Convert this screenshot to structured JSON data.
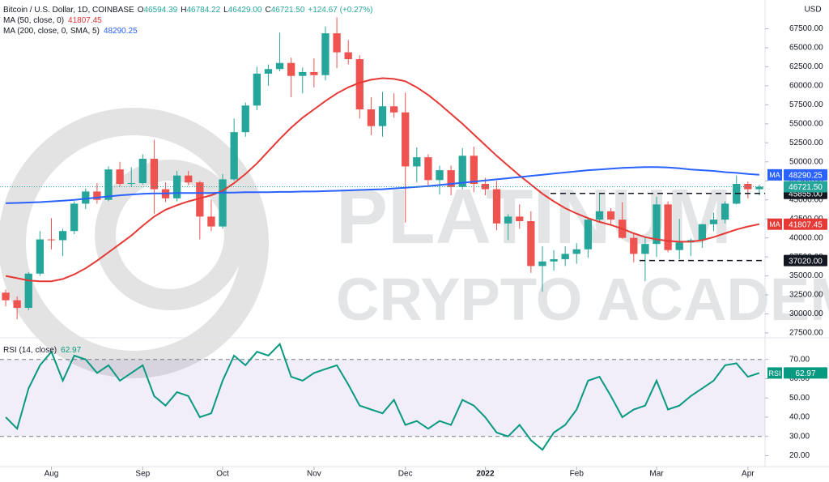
{
  "chart_data": [
    {
      "type": "candlestick",
      "title": "Bitcoin / U.S. Dollar, 1D, COINBASE",
      "ohlc": [
        "O",
        "46594.39",
        "H",
        "46784.22",
        "L",
        "46429.00",
        "C",
        "46721.50",
        "+124.67 (+0.27%)"
      ],
      "currency": "USD",
      "watermark": [
        "PLATINUM",
        "CRYPTO ACADEMY"
      ],
      "categories": [
        null,
        null,
        null,
        null,
        "Aug",
        null,
        null,
        null,
        null,
        null,
        null,
        null,
        "Sep",
        null,
        null,
        null,
        null,
        null,
        null,
        "Oct",
        null,
        null,
        null,
        null,
        null,
        null,
        null,
        "Nov",
        null,
        null,
        null,
        null,
        null,
        null,
        null,
        "Dec",
        null,
        null,
        null,
        null,
        null,
        null,
        "2022",
        null,
        null,
        null,
        null,
        null,
        null,
        null,
        "Feb",
        null,
        null,
        null,
        null,
        null,
        null,
        "Mar",
        null,
        null,
        null,
        null,
        null,
        null,
        null,
        "Apr",
        null
      ],
      "open": [
        32800,
        31800,
        30800,
        35300,
        39800,
        39700,
        40900,
        44500,
        46100,
        45000,
        49000,
        47100,
        47200,
        50400,
        46400,
        45200,
        48200,
        47300,
        42800,
        41500,
        47700,
        53900,
        57400,
        61600,
        62200,
        63000,
        61300,
        61800,
        61400,
        66900,
        64400,
        63500,
        56900,
        54700,
        57300,
        56500,
        49400,
        50600,
        47600,
        48900,
        46700,
        50800,
        47100,
        46400,
        41900,
        42800,
        42200,
        36300,
        36900,
        37200,
        37900,
        38500,
        42400,
        43500,
        42400,
        40000,
        37900,
        39200,
        44400,
        38400,
        39400,
        39700,
        41800,
        42400,
        44500,
        47100,
        46400
      ],
      "high": [
        33200,
        32300,
        35500,
        40900,
        42600,
        41200,
        44800,
        46500,
        47200,
        49400,
        50000,
        49300,
        51000,
        52900,
        47300,
        48800,
        48800,
        47500,
        45000,
        48400,
        55700,
        57800,
        62500,
        62800,
        67000,
        63700,
        62400,
        63600,
        67800,
        69000,
        66000,
        64000,
        58500,
        59200,
        59000,
        59100,
        51900,
        51000,
        49500,
        49500,
        51800,
        52000,
        47900,
        47500,
        43100,
        44400,
        43500,
        38900,
        38400,
        38900,
        39300,
        42600,
        45800,
        43900,
        44700,
        40500,
        40200,
        45400,
        44800,
        42500,
        39900,
        41800,
        43300,
        44800,
        48200,
        47400,
        47000
      ],
      "low": [
        31000,
        29300,
        30500,
        35000,
        38500,
        37600,
        40500,
        43800,
        44500,
        44800,
        46800,
        46700,
        47000,
        43200,
        44700,
        44800,
        46900,
        39800,
        40900,
        41200,
        47500,
        53300,
        56800,
        60000,
        61900,
        58500,
        59000,
        59800,
        60700,
        62300,
        62800,
        55700,
        53500,
        53300,
        55800,
        42000,
        47300,
        46800,
        45700,
        45600,
        46400,
        46000,
        45600,
        41000,
        39700,
        41200,
        35400,
        32900,
        35700,
        36300,
        36600,
        37400,
        42000,
        41700,
        39900,
        36800,
        34300,
        37500,
        38100,
        37200,
        37600,
        38700,
        40900,
        41900,
        44400,
        45200,
        45600
      ],
      "close": [
        31800,
        30800,
        35300,
        39800,
        39700,
        40900,
        44500,
        46100,
        45000,
        49000,
        47100,
        47200,
        50400,
        46400,
        45200,
        48200,
        47300,
        42800,
        41500,
        47700,
        53900,
        57400,
        61600,
        62200,
        63000,
        61300,
        61800,
        61400,
        66900,
        64400,
        63500,
        56900,
        54700,
        57300,
        56500,
        49400,
        50600,
        47600,
        48900,
        46700,
        50800,
        47100,
        46400,
        41900,
        42800,
        42200,
        36300,
        36900,
        37200,
        37900,
        38500,
        42400,
        43500,
        42400,
        40000,
        37900,
        39200,
        44400,
        38400,
        39400,
        39700,
        41800,
        42400,
        44500,
        47100,
        46400,
        46721.5
      ],
      "close_label": "46721.50",
      "up_color": "#26a69a",
      "down_color": "#ef5350",
      "series": [
        {
          "name": "MA (50, close, 0)",
          "tag_label": "MA",
          "color": "#e53935",
          "values": [
            35000,
            34700,
            34400,
            34300,
            34300,
            34600,
            35200,
            36000,
            37000,
            38100,
            39200,
            40300,
            41600,
            42800,
            43700,
            44300,
            44800,
            45200,
            45600,
            46200,
            47200,
            48400,
            49800,
            51400,
            53000,
            54500,
            55800,
            56900,
            58000,
            59000,
            59800,
            60400,
            60800,
            61000,
            60900,
            60600,
            59800,
            58800,
            57600,
            56300,
            55000,
            53600,
            52200,
            50800,
            49500,
            48200,
            47000,
            45800,
            44800,
            43900,
            43200,
            42600,
            42100,
            41700,
            41200,
            40600,
            40100,
            39800,
            39600,
            39500,
            39500,
            39700,
            40100,
            40600,
            41100,
            41500,
            41807.45
          ]
        },
        {
          "name": "MA (200, close, 0, SMA, 5)",
          "tag_label": "MA",
          "color": "#2962ff",
          "values": [
            44550,
            44600,
            44650,
            44700,
            44800,
            44900,
            45000,
            45150,
            45300,
            45450,
            45600,
            45700,
            45800,
            45850,
            45850,
            45900,
            45900,
            45900,
            45900,
            45950,
            45950,
            46000,
            46000,
            46000,
            46050,
            46050,
            46100,
            46100,
            46150,
            46200,
            46250,
            46300,
            46350,
            46400,
            46500,
            46600,
            46700,
            46800,
            46950,
            47100,
            47250,
            47400,
            47550,
            47700,
            47850,
            48000,
            48150,
            48300,
            48450,
            48600,
            48750,
            48900,
            49000,
            49100,
            49200,
            49250,
            49300,
            49300,
            49250,
            49150,
            49000,
            48900,
            48800,
            48650,
            48550,
            48400,
            48290.25
          ]
        }
      ],
      "levels": [
        {
          "value": 45855,
          "label": "45855.00"
        },
        {
          "value": 37020,
          "label": "37020.00"
        }
      ],
      "ylim": [
        27075,
        71280
      ],
      "yticks": [
        {
          "value": 27500,
          "label": "27500.00"
        },
        {
          "value": 30000,
          "label": "30000.00"
        },
        {
          "value": 32500,
          "label": "32500.00"
        },
        {
          "value": 35000,
          "label": "35000.00"
        },
        {
          "value": 37500,
          "label": "37500.00"
        },
        {
          "value": 40000,
          "label": "40000.00"
        },
        {
          "value": 42500,
          "label": "42500.00"
        },
        {
          "value": 45000,
          "label": "45000.00"
        },
        {
          "value": 47500,
          "label": "47500.00"
        },
        {
          "value": 50000,
          "label": "50000.00"
        },
        {
          "value": 52500,
          "label": "52500.00"
        },
        {
          "value": 55000,
          "label": "55000.00"
        },
        {
          "value": 57500,
          "label": "57500.00"
        },
        {
          "value": 60000,
          "label": "60000.00"
        },
        {
          "value": 62500,
          "label": "62500.00"
        },
        {
          "value": 65000,
          "label": "65000.00"
        },
        {
          "value": 67500,
          "label": "67500.00"
        }
      ]
    },
    {
      "type": "line",
      "title": "RSI (14, close)",
      "tag_label": "RSI",
      "color": "#089981",
      "values": [
        40,
        34,
        55,
        67,
        74,
        59,
        72,
        70,
        63,
        67,
        59,
        63,
        67,
        51,
        46,
        53,
        51,
        40,
        42,
        59,
        72,
        67,
        74,
        72,
        78,
        61,
        59,
        63,
        65,
        67,
        57,
        46,
        44,
        42,
        49,
        36,
        38,
        34,
        38,
        36,
        49,
        46,
        40,
        32,
        30,
        36,
        28,
        23,
        32,
        36,
        44,
        59,
        61,
        51,
        40,
        44,
        46,
        59,
        44,
        46,
        51,
        55,
        59,
        67,
        68,
        61,
        62.97
      ],
      "band": [
        30,
        70
      ],
      "ylim": [
        14.3,
        80
      ],
      "yticks": [
        {
          "value": 20,
          "label": "20.00"
        },
        {
          "value": 30,
          "label": "30.00"
        },
        {
          "value": 40,
          "label": "40.00"
        },
        {
          "value": 50,
          "label": "50.00"
        },
        {
          "value": 60,
          "label": "60.00"
        },
        {
          "value": 70,
          "label": "70.00"
        }
      ]
    }
  ]
}
